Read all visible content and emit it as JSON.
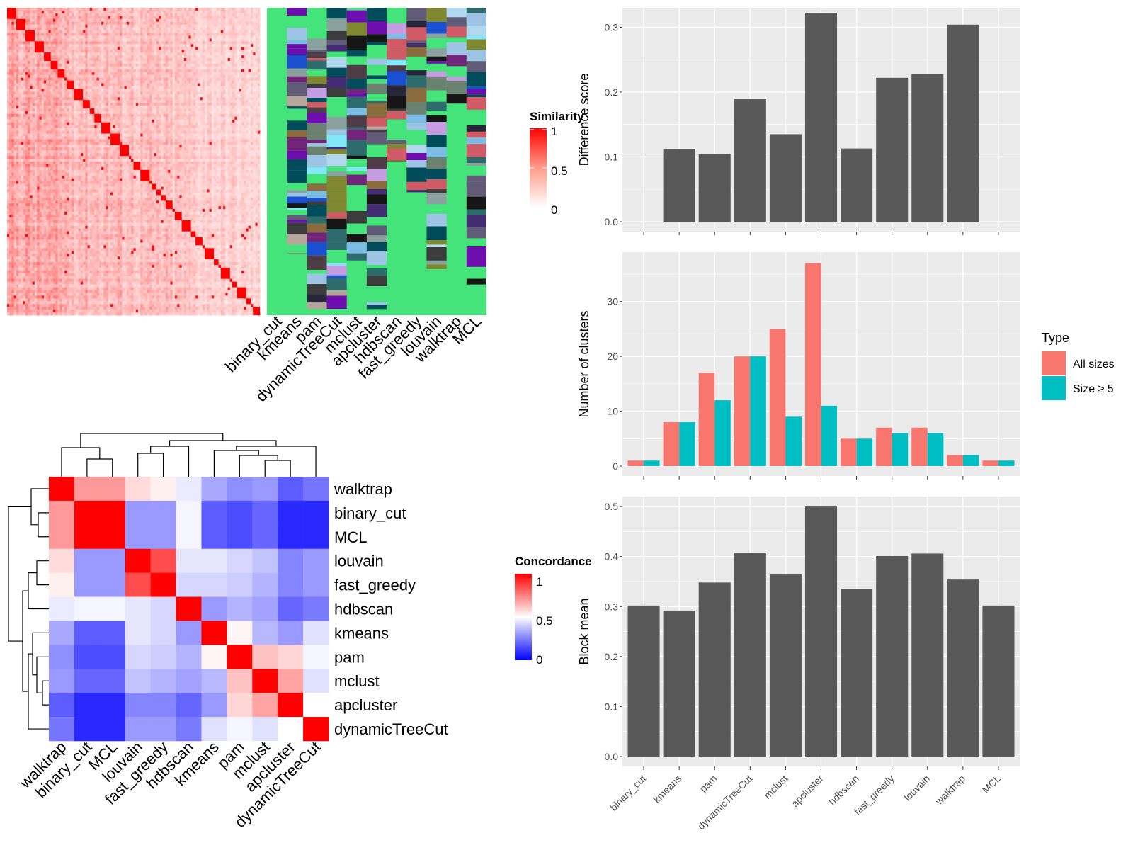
{
  "methods": [
    "binary_cut",
    "kmeans",
    "pam",
    "dynamicTreeCut",
    "mclust",
    "apcluster",
    "hdbscan",
    "fast_greedy",
    "louvain",
    "walktrap",
    "MCL"
  ],
  "similarity_legend": {
    "title": "Similarity",
    "ticks": [
      "1",
      "0.5",
      "0"
    ]
  },
  "concordance_legend": {
    "title": "Concordance",
    "ticks": [
      "1",
      "0.5",
      "0"
    ]
  },
  "colors": {
    "bar_gray": "#595959",
    "panel_bg": "#ebebeb",
    "all_sizes": "#f8766d",
    "size_ge5": "#00bfc4",
    "heat_high": "#ff0000",
    "heat_mid": "#ffffff",
    "heat_low": "#0000ff",
    "strip_bg": "#44e47a"
  },
  "chart_data": [
    {
      "type": "heatmap",
      "id": "similarity-matrix",
      "description_values": {
        "size": 110,
        "diagonal": 1.0,
        "range": [
          0,
          1
        ]
      },
      "column_annotations": [
        "binary_cut",
        "kmeans",
        "pam",
        "dynamicTreeCut",
        "mclust",
        "apcluster",
        "hdbscan",
        "fast_greedy",
        "louvain",
        "walktrap",
        "MCL"
      ]
    },
    {
      "type": "heatmap",
      "id": "concordance-matrix",
      "row_order": [
        "walktrap",
        "binary_cut",
        "MCL",
        "louvain",
        "fast_greedy",
        "hdbscan",
        "kmeans",
        "pam",
        "mclust",
        "apcluster",
        "dynamicTreeCut"
      ],
      "col_order": [
        "walktrap",
        "binary_cut",
        "MCL",
        "louvain",
        "fast_greedy",
        "hdbscan",
        "kmeans",
        "pam",
        "mclust",
        "apcluster",
        "dynamicTreeCut"
      ],
      "values": [
        [
          1.0,
          0.7,
          0.7,
          0.57,
          0.53,
          0.46,
          0.33,
          0.28,
          0.3,
          0.18,
          0.23
        ],
        [
          0.7,
          1.0,
          1.0,
          0.3,
          0.3,
          0.48,
          0.18,
          0.15,
          0.2,
          0.08,
          0.08
        ],
        [
          0.7,
          1.0,
          1.0,
          0.3,
          0.3,
          0.48,
          0.18,
          0.15,
          0.2,
          0.08,
          0.08
        ],
        [
          0.57,
          0.3,
          0.3,
          1.0,
          0.85,
          0.45,
          0.45,
          0.42,
          0.38,
          0.26,
          0.3
        ],
        [
          0.53,
          0.3,
          0.3,
          0.85,
          1.0,
          0.42,
          0.42,
          0.4,
          0.35,
          0.26,
          0.3
        ],
        [
          0.46,
          0.48,
          0.48,
          0.45,
          0.42,
          1.0,
          0.3,
          0.35,
          0.32,
          0.2,
          0.24
        ],
        [
          0.33,
          0.18,
          0.18,
          0.45,
          0.42,
          0.3,
          1.0,
          0.52,
          0.36,
          0.3,
          0.44
        ],
        [
          0.28,
          0.15,
          0.15,
          0.42,
          0.4,
          0.35,
          0.52,
          1.0,
          0.62,
          0.58,
          0.48
        ],
        [
          0.3,
          0.2,
          0.2,
          0.38,
          0.35,
          0.32,
          0.36,
          0.62,
          1.0,
          0.68,
          0.44
        ],
        [
          0.18,
          0.08,
          0.08,
          0.26,
          0.26,
          0.2,
          0.3,
          0.58,
          0.68,
          1.0,
          0.5
        ],
        [
          0.23,
          0.08,
          0.08,
          0.3,
          0.3,
          0.24,
          0.44,
          0.48,
          0.44,
          0.5,
          1.0
        ]
      ],
      "range": [
        0,
        1
      ]
    },
    {
      "type": "bar",
      "id": "difference-score",
      "ylabel": "Difference score",
      "categories": [
        "binary_cut",
        "kmeans",
        "pam",
        "dynamicTreeCut",
        "mclust",
        "apcluster",
        "hdbscan",
        "fast_greedy",
        "louvain",
        "walktrap",
        "MCL"
      ],
      "values": [
        0,
        0.112,
        0.104,
        0.189,
        0.135,
        0.322,
        0.113,
        0.222,
        0.228,
        0.304,
        0
      ],
      "ylim": [
        0,
        0.33
      ],
      "yticks": [
        "0.0",
        "0.1",
        "0.2",
        "0.3"
      ]
    },
    {
      "type": "bar",
      "id": "number-of-clusters",
      "ylabel": "Number of clusters",
      "categories": [
        "binary_cut",
        "kmeans",
        "pam",
        "dynamicTreeCut",
        "mclust",
        "apcluster",
        "hdbscan",
        "fast_greedy",
        "louvain",
        "walktrap",
        "MCL"
      ],
      "series": [
        {
          "name": "All sizes",
          "values": [
            1,
            8,
            17,
            20,
            25,
            37,
            5,
            7,
            7,
            2,
            1
          ]
        },
        {
          "name": "Size ≥ 5",
          "values": [
            1,
            8,
            12,
            20,
            9,
            11,
            5,
            6,
            6,
            2,
            1
          ]
        }
      ],
      "legend_title": "Type",
      "ylim": [
        0,
        39
      ],
      "yticks": [
        "0",
        "10",
        "20",
        "30"
      ]
    },
    {
      "type": "bar",
      "id": "block-mean",
      "ylabel": "Block mean",
      "categories": [
        "binary_cut",
        "kmeans",
        "pam",
        "dynamicTreeCut",
        "mclust",
        "apcluster",
        "hdbscan",
        "fast_greedy",
        "louvain",
        "walktrap",
        "MCL"
      ],
      "values": [
        0.302,
        0.292,
        0.348,
        0.408,
        0.364,
        0.5,
        0.335,
        0.401,
        0.406,
        0.354,
        0.302
      ],
      "ylim": [
        0,
        0.52
      ],
      "yticks": [
        "0.0",
        "0.1",
        "0.2",
        "0.3",
        "0.4",
        "0.5"
      ]
    }
  ]
}
